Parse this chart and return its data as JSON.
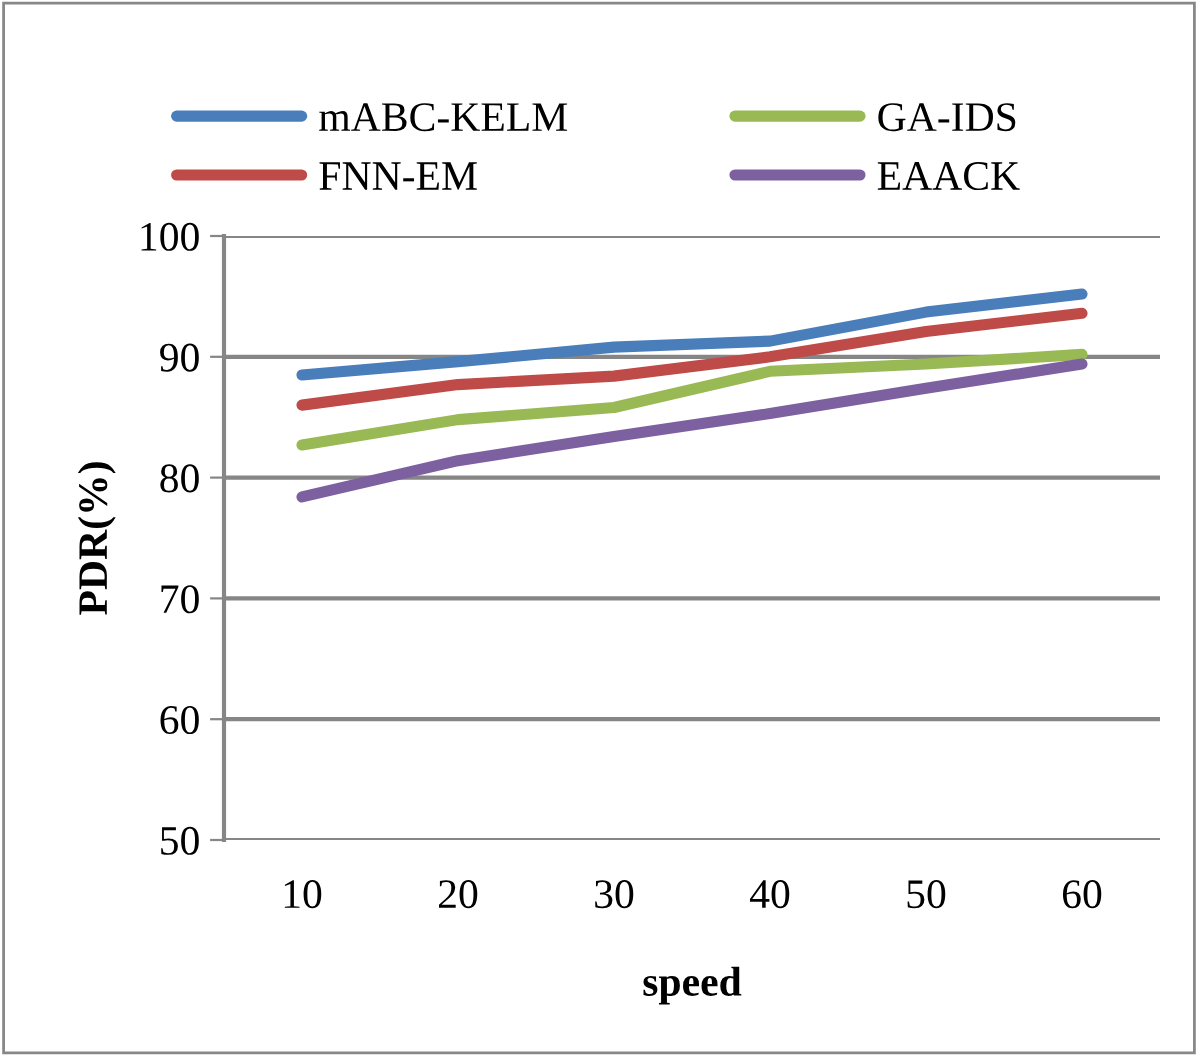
{
  "chart_data": {
    "type": "line",
    "xlabel": "speed",
    "ylabel": "PDR(%)",
    "categories": [
      "10",
      "20",
      "30",
      "40",
      "50",
      "60"
    ],
    "series": [
      {
        "name": "mABC-KELM",
        "color": "#4a7ebb",
        "values": [
          88.5,
          89.6,
          90.8,
          91.3,
          93.7,
          95.2
        ]
      },
      {
        "name": "FNN-EM",
        "color": "#be4b48",
        "values": [
          86.0,
          87.7,
          88.4,
          90.0,
          92.1,
          93.6
        ]
      },
      {
        "name": "GA-IDS",
        "color": "#98b954",
        "values": [
          82.7,
          84.8,
          85.8,
          88.8,
          89.4,
          90.2
        ]
      },
      {
        "name": "EAACK",
        "color": "#7d60a0",
        "values": [
          78.4,
          81.4,
          83.4,
          85.3,
          87.4,
          89.4
        ]
      }
    ],
    "ylim": [
      50,
      100
    ],
    "yticks": [
      50,
      60,
      70,
      80,
      90,
      100
    ],
    "grid": "y",
    "legend": "top",
    "marker": "none",
    "line_style": "solid"
  }
}
